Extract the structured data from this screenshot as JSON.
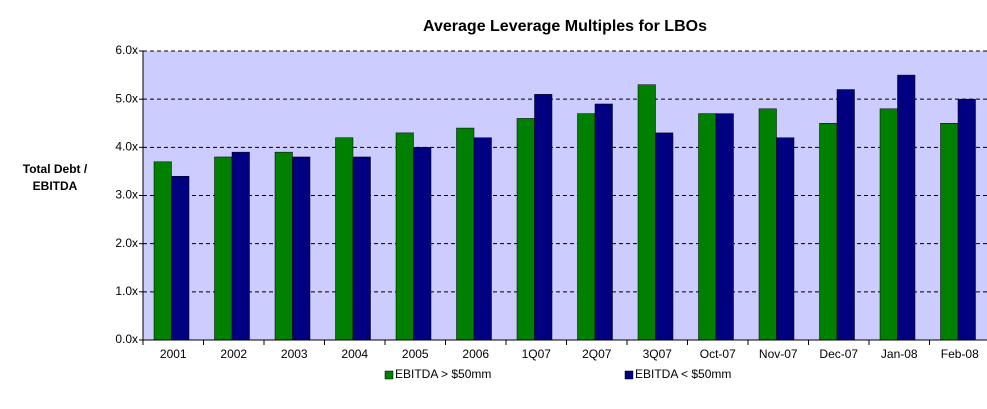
{
  "chart_data": {
    "type": "bar",
    "title": "Average Leverage Multiples for LBOs",
    "y_label": [
      "Total Debt /",
      "EBITDA"
    ],
    "categories": [
      "2001",
      "2002",
      "2003",
      "2004",
      "2005",
      "2006",
      "1Q07",
      "2Q07",
      "3Q07",
      "Oct-07",
      "Nov-07",
      "Dec-07",
      "Jan-08",
      "Feb-08"
    ],
    "series": [
      {
        "name": "EBITDA > $50mm",
        "color": "#008000",
        "values": [
          3.7,
          3.8,
          3.9,
          4.2,
          4.3,
          4.4,
          4.6,
          4.7,
          5.3,
          4.7,
          4.8,
          4.5,
          4.8,
          4.5
        ]
      },
      {
        "name": "EBITDA < $50mm",
        "color": "#000080",
        "values": [
          3.4,
          3.9,
          3.8,
          3.8,
          4.0,
          4.2,
          5.1,
          4.9,
          4.3,
          4.7,
          4.2,
          5.2,
          5.5,
          5.0
        ]
      }
    ],
    "ylim": [
      0,
      6
    ],
    "yticks": [
      {
        "value": 0,
        "label": "0.0x"
      },
      {
        "value": 1,
        "label": "1.0x"
      },
      {
        "value": 2,
        "label": "2.0x"
      },
      {
        "value": 3,
        "label": "3.0x"
      },
      {
        "value": 4,
        "label": "4.0x"
      },
      {
        "value": 5,
        "label": "5.0x"
      },
      {
        "value": 6,
        "label": "6.0x"
      }
    ],
    "grid": true,
    "legend": "bottom",
    "plot_background": "#ccccff"
  }
}
